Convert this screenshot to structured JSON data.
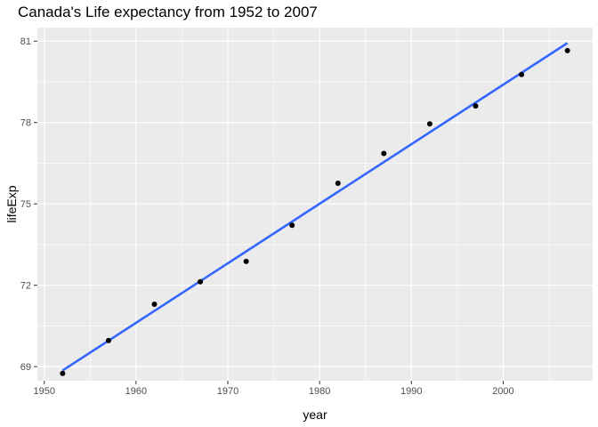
{
  "chart_data": {
    "type": "scatter",
    "title": "Canada's Life expectancy from 1952 to 2007",
    "xlabel": "year",
    "ylabel": "lifeExp",
    "xlim": [
      1949.25,
      2009.75
    ],
    "ylim": [
      68.48,
      81.5
    ],
    "x_ticks": [
      1950,
      1960,
      1970,
      1980,
      1990,
      2000
    ],
    "x_tick_labels": [
      "1950",
      "1960",
      "1970",
      "1980",
      "1990",
      "2000"
    ],
    "y_ticks": [
      69,
      72,
      75,
      78,
      81
    ],
    "y_tick_labels": [
      "69",
      "72",
      "75",
      "78",
      "81"
    ],
    "grid": true,
    "series": [
      {
        "x": [
          1952,
          1957,
          1962,
          1967,
          1972,
          1977,
          1982,
          1987,
          1992,
          1997,
          2002,
          2007
        ],
        "y": [
          68.75,
          69.96,
          71.3,
          72.13,
          72.88,
          74.21,
          75.76,
          76.86,
          77.95,
          78.61,
          79.77,
          80.65
        ]
      }
    ],
    "trend_line": {
      "x": [
        1952,
        2007
      ],
      "y": [
        68.86,
        80.93
      ],
      "color": "#3366ff"
    },
    "colors": {
      "panel": "#ebebeb",
      "grid": "#ffffff",
      "points": "#000000",
      "line": "#3366ff"
    }
  }
}
